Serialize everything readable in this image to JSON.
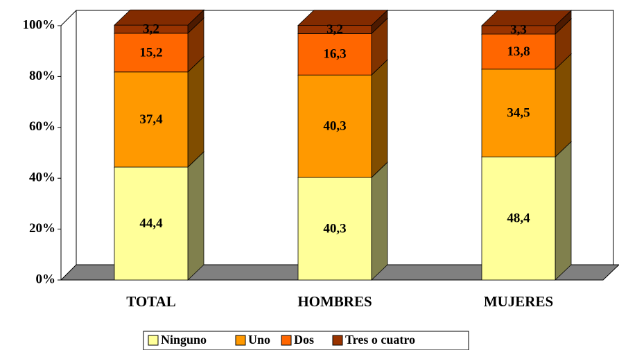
{
  "chart_data": {
    "type": "bar",
    "stacked": true,
    "categories": [
      "TOTAL",
      "HOMBRES",
      "MUJERES"
    ],
    "series": [
      {
        "name": "Ninguno",
        "color": "#ffff99",
        "values": [
          44.4,
          40.3,
          48.4
        ],
        "value_labels": [
          "44,4",
          "40,3",
          "48,4"
        ]
      },
      {
        "name": "Uno",
        "color": "#ff9900",
        "values": [
          37.4,
          40.3,
          34.5
        ],
        "value_labels": [
          "37,4",
          "40,3",
          "34,5"
        ]
      },
      {
        "name": "Dos",
        "color": "#ff6600",
        "values": [
          15.2,
          16.3,
          13.8
        ],
        "value_labels": [
          "15,2",
          "16,3",
          "13,8"
        ]
      },
      {
        "name": "Tres o cuatro",
        "color": "#993300",
        "values": [
          3.2,
          3.2,
          3.3
        ],
        "value_labels": [
          "3,2",
          "3,2",
          "3,3"
        ]
      }
    ],
    "ylim": [
      0,
      100
    ],
    "yticks": [
      {
        "value": 0,
        "label": "0%"
      },
      {
        "value": 20,
        "label": "20%"
      },
      {
        "value": 40,
        "label": "40%"
      },
      {
        "value": 60,
        "label": "60%"
      },
      {
        "value": 80,
        "label": "80%"
      },
      {
        "value": 100,
        "label": "100%"
      }
    ],
    "legend": "bottom"
  }
}
